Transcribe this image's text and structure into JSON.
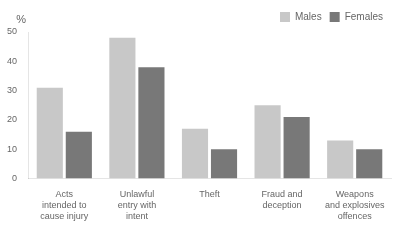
{
  "chart_data": {
    "type": "bar",
    "categories": [
      "Acts\nintended to\ncause injury",
      "Unlawful\nentry with\nintent",
      "Theft",
      "Fraud and\ndeception",
      "Weapons\nand explosives\noffences"
    ],
    "series": [
      {
        "name": "Males",
        "color": "#c8c8c8",
        "values": [
          31,
          48,
          17,
          25,
          13
        ]
      },
      {
        "name": "Females",
        "color": "#787878",
        "values": [
          16,
          38,
          10,
          21,
          10
        ]
      }
    ],
    "ylabel": "%",
    "ylim": [
      0,
      50
    ],
    "yticks": [
      0,
      10,
      20,
      30,
      40,
      50
    ],
    "grid": false,
    "legend": "upper right"
  }
}
